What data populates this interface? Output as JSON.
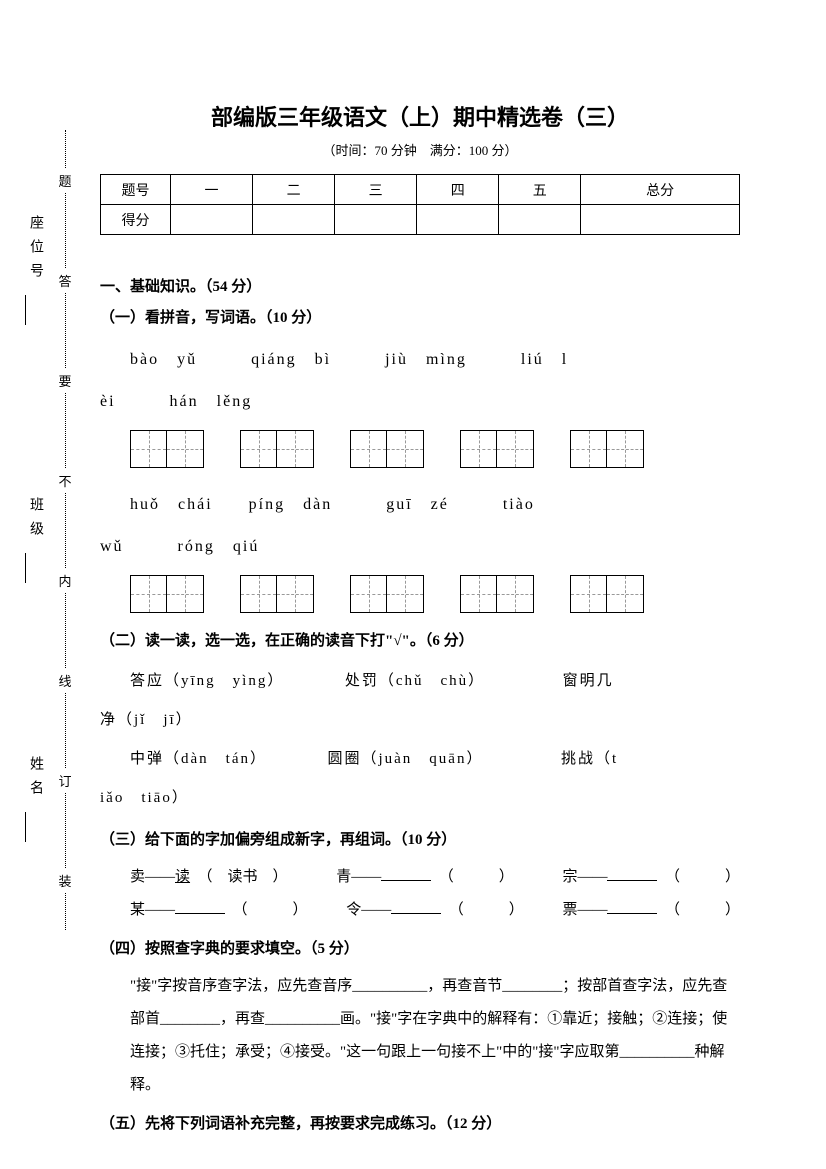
{
  "title": "部编版三年级语文（上）期中精选卷（三）",
  "subtitle": "（时间：70 分钟　满分：100 分）",
  "score_table": {
    "headers": [
      "题号",
      "一",
      "二",
      "三",
      "四",
      "五",
      "总分"
    ],
    "row_label": "得分"
  },
  "side": {
    "labels": [
      "姓名",
      "班级",
      "座位号"
    ],
    "dotted": [
      "装",
      "订",
      "线",
      "内",
      "不",
      "要",
      "答",
      "题"
    ]
  },
  "s1": {
    "heading": "一、基础知识。（54 分）",
    "q1": {
      "heading": "（一）看拼音，写词语。（10 分）",
      "line1a": "bào　yǔ　　　qiáng　bì　　　jiù　mìng　　　liú　l",
      "line1b": "èi　　　hán　lěng",
      "line2a": "huǒ　chái　　píng　dàn　　　guī　zé　　　tiào",
      "line2b": "wǔ　　　róng　qiú"
    },
    "q2": {
      "heading": "（二）读一读，选一选，在正确的读音下打\"√\"。（6 分）",
      "line1": "答应（yīng　yìng）　　　　处罚（chǔ　chù）　　　　　窗明几",
      "line1b": "净（jǐ　jī）",
      "line2": "中弹（dàn　tán）　　　　圆圈（juàn　quān）　　　　　挑战（t",
      "line2b": "iǎo　tiāo）"
    },
    "q3": {
      "heading": "（三）给下面的字加偏旁组成新字，再组词。（10 分）",
      "row1": [
        {
          "a": "卖——",
          "b": "读",
          "c": "（　读书　）"
        },
        {
          "a": "青——",
          "c": "（　　　）"
        },
        {
          "a": "宗——",
          "c": "（　　　）"
        }
      ],
      "row2": [
        {
          "a": "某——",
          "c": "（　　　）"
        },
        {
          "a": "令——",
          "c": "（　　　）"
        },
        {
          "a": "票——",
          "c": "（　　　）"
        }
      ]
    },
    "q4": {
      "heading": "（四）按照查字典的要求填空。（5 分）",
      "para": "\"接\"字按音序查字法，应先查音序__________，再查音节________；按部首查字法，应先查部首________，再查__________画。\"接\"字在字典中的解释有：①靠近；接触；②连接；使连接；③托住；承受；④接受。\"这一句跟上一句接不上\"中的\"接\"字应取第__________种解释。"
    },
    "q5": {
      "heading": "（五）先将下列词语补充完整，再按要求完成练习。（12 分）"
    }
  },
  "styles": {
    "page_bg": "#ffffff",
    "text_color": "#000000",
    "title_fontsize": 22,
    "body_fontsize": 15,
    "char_box_size": 36,
    "dash_color": "#999999"
  }
}
